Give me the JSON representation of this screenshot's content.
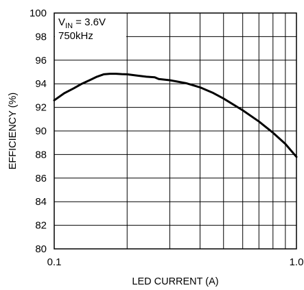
{
  "chart_data": {
    "type": "line",
    "xlabel": "LED CURRENT (A)",
    "ylabel": "EFFICIENCY (%)",
    "x_scale": "log",
    "xlim": [
      0.1,
      1.0
    ],
    "ylim": [
      80,
      100
    ],
    "x_ticks": [
      0.1,
      1.0
    ],
    "x_tick_labels": [
      "0.1",
      "1.0"
    ],
    "x_minor_gridlines": [
      0.2,
      0.3,
      0.4,
      0.5,
      0.6,
      0.7,
      0.8,
      0.9
    ],
    "y_ticks": [
      80,
      82,
      84,
      86,
      88,
      90,
      92,
      94,
      96,
      98,
      100
    ],
    "y_tick_labels": [
      "80",
      "82",
      "84",
      "86",
      "88",
      "90",
      "92",
      "94",
      "96",
      "98",
      "100"
    ],
    "grid": true,
    "annotations": [
      {
        "main": "V",
        "sub": "IN",
        "rest": " = 3.6V"
      },
      {
        "main": "750kHz",
        "sub": "",
        "rest": ""
      }
    ],
    "series": [
      {
        "x": [
          0.1,
          0.11,
          0.12,
          0.13,
          0.14,
          0.15,
          0.16,
          0.17,
          0.18,
          0.19,
          0.2,
          0.22,
          0.24,
          0.26,
          0.27,
          0.3,
          0.35,
          0.4,
          0.45,
          0.5,
          0.6,
          0.7,
          0.8,
          0.9,
          1.0
        ],
        "y": [
          92.6,
          93.2,
          93.6,
          94.0,
          94.3,
          94.6,
          94.8,
          94.85,
          94.85,
          94.82,
          94.8,
          94.7,
          94.6,
          94.55,
          94.4,
          94.3,
          94.05,
          93.7,
          93.25,
          92.75,
          91.75,
          90.8,
          89.85,
          88.9,
          87.8
        ]
      }
    ]
  }
}
